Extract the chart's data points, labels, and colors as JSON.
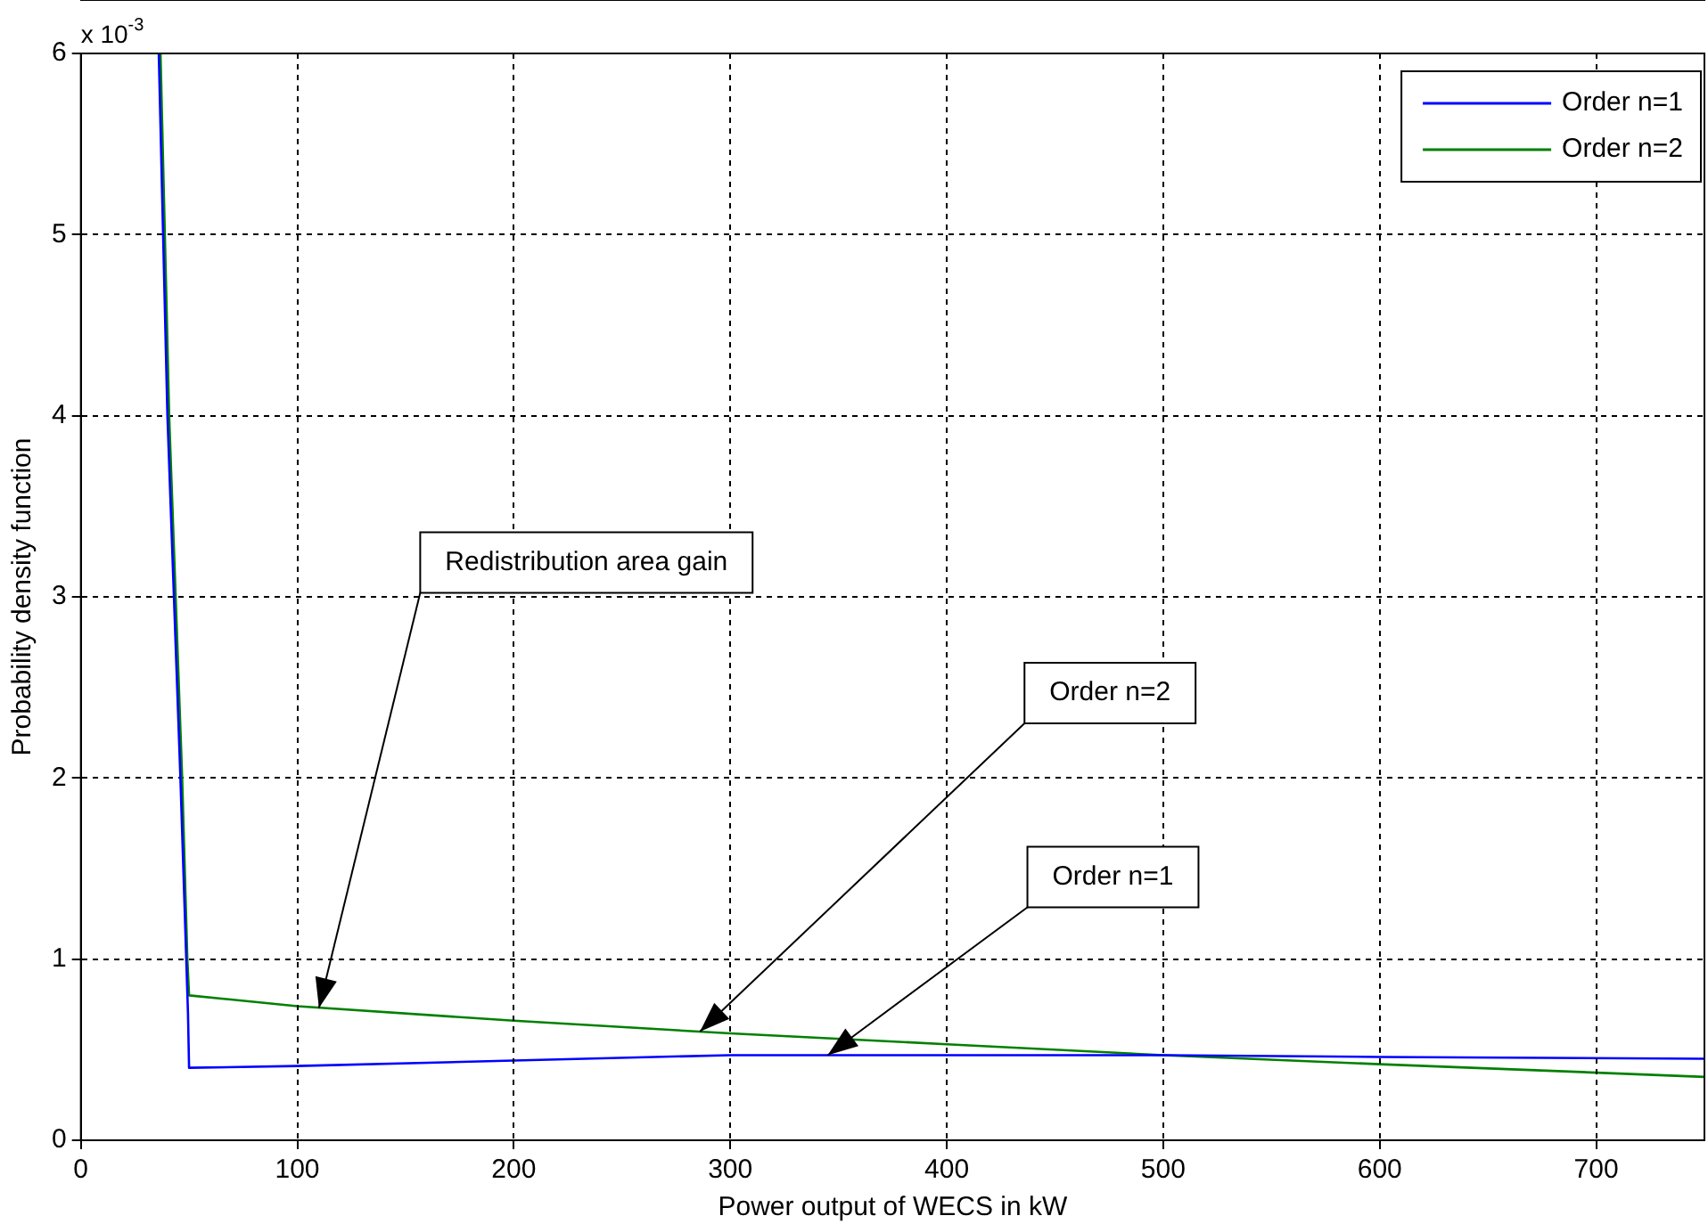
{
  "chart_data": {
    "type": "line",
    "xlabel": "Power output of WECS in kW",
    "ylabel": "Probability density function",
    "xlim": [
      0,
      750
    ],
    "xticks": [
      0,
      100,
      200,
      300,
      400,
      500,
      600,
      700
    ],
    "ylim": [
      0,
      6
    ],
    "yticks": [
      0,
      1,
      2,
      3,
      4,
      5,
      6
    ],
    "grid": true,
    "legend": "top right",
    "marker": "none",
    "line_style": "solid",
    "series": [
      {
        "name": "Order n=1",
        "color": "#0000ff",
        "x": [
          36,
          38,
          40,
          43,
          46,
          48.7,
          49.5,
          50,
          100,
          200,
          300,
          400,
          500,
          600,
          750
        ],
        "values": [
          6,
          5,
          4,
          3,
          2,
          1,
          0.7,
          0.4,
          0.41,
          0.44,
          0.47,
          0.47,
          0.47,
          0.46,
          0.45
        ]
      },
      {
        "name": "Order n=2",
        "color": "#008000",
        "x": [
          36.8,
          38.8,
          40.8,
          43.8,
          46.8,
          49.2,
          50,
          100,
          200,
          300,
          400,
          500,
          600,
          750
        ],
        "values": [
          6,
          5,
          4,
          3,
          2,
          1,
          0.8,
          0.74,
          0.66,
          0.59,
          0.53,
          0.47,
          0.42,
          0.35
        ]
      }
    ],
    "annotations": [
      "x 10$^{-3}$",
      {
        "text": "Redistribution area gain",
        "x": 110,
        "y": 0.73
      },
      {
        "text": "Order n=2",
        "x": 286,
        "y": 0.6
      },
      {
        "text": "Order n=1",
        "x": 345,
        "y": 0.47
      }
    ]
  }
}
